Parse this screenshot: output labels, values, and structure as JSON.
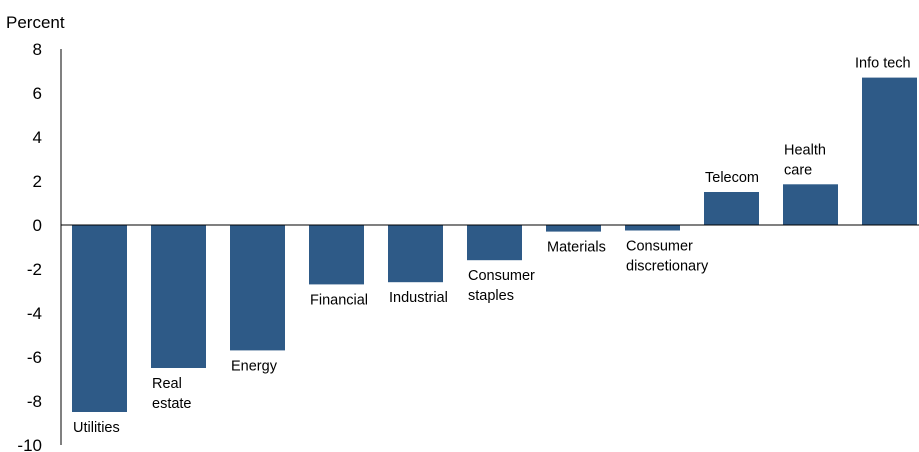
{
  "chart_data": {
    "type": "bar",
    "ylabel": "Percent",
    "ylim": [
      -10,
      8
    ],
    "yticks": [
      "8",
      "6",
      "4",
      "2",
      "0",
      "-2",
      "-4",
      "-6",
      "-8",
      "-10"
    ],
    "grid": false,
    "bar_color": "#2e5a87",
    "categories": [
      "Utilities",
      "Real estate",
      "Energy",
      "Financial",
      "Industrial",
      "Consumer staples",
      "Materials",
      "Consumer discretionary",
      "Telecom",
      "Health care",
      "Info tech"
    ],
    "values": [
      -8.5,
      -6.5,
      -5.7,
      -2.7,
      -2.6,
      -1.6,
      -0.3,
      -0.25,
      1.5,
      1.85,
      6.7
    ]
  }
}
